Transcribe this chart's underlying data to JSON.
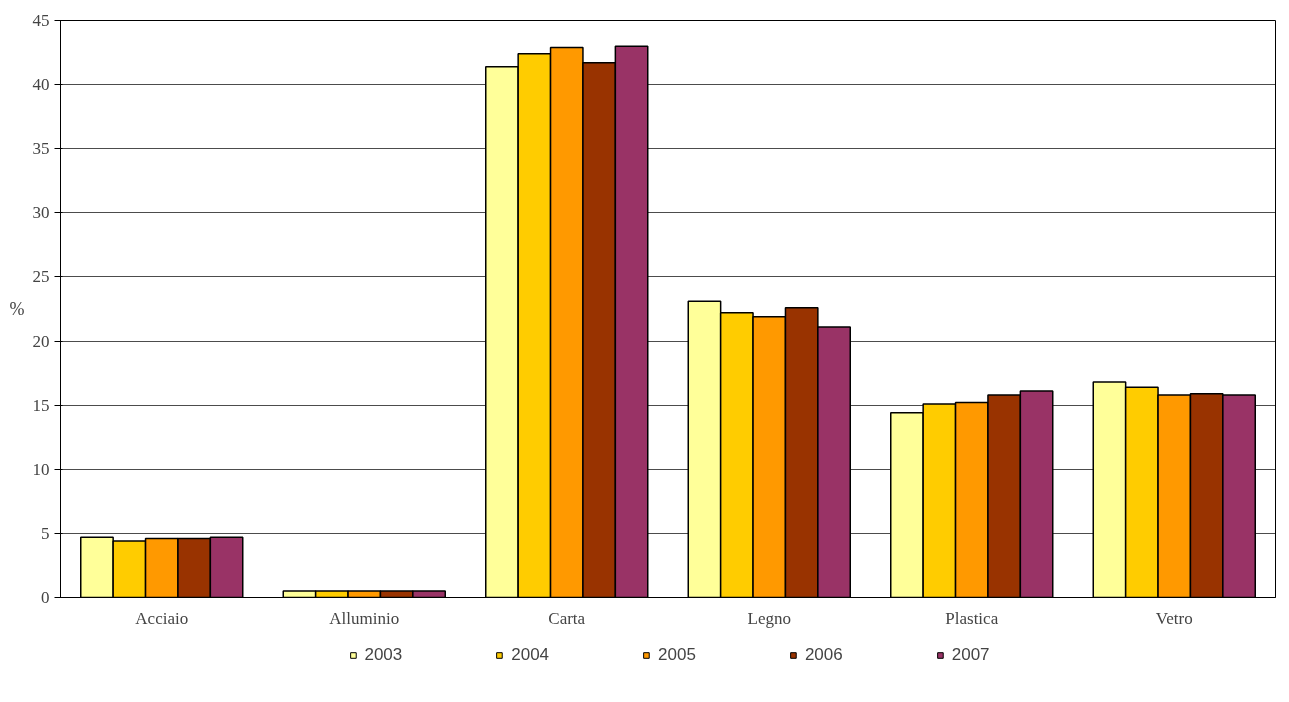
{
  "chart_data": {
    "type": "bar",
    "ylabel": "%",
    "categories": [
      "Acciaio",
      "Alluminio",
      "Carta",
      "Legno",
      "Plastica",
      "Vetro"
    ],
    "series": [
      {
        "name": "2003",
        "color": "#ffff99",
        "values": [
          4.7,
          0.5,
          41.4,
          23.1,
          14.4,
          16.8
        ]
      },
      {
        "name": "2004",
        "color": "#ffcc00",
        "values": [
          4.4,
          0.5,
          42.4,
          22.2,
          15.1,
          16.4
        ]
      },
      {
        "name": "2005",
        "color": "#ff9900",
        "values": [
          4.6,
          0.5,
          42.9,
          21.9,
          15.2,
          15.8
        ]
      },
      {
        "name": "2006",
        "color": "#993300",
        "values": [
          4.6,
          0.5,
          41.7,
          22.6,
          15.8,
          15.9
        ]
      },
      {
        "name": "2007",
        "color": "#993366",
        "values": [
          4.7,
          0.5,
          43.0,
          21.1,
          16.1,
          15.8
        ]
      }
    ],
    "ylim": [
      0,
      45
    ],
    "yticks": [
      0,
      5,
      10,
      15,
      20,
      25,
      30,
      35,
      40,
      45
    ],
    "grid": "y",
    "legend": "bottom"
  }
}
